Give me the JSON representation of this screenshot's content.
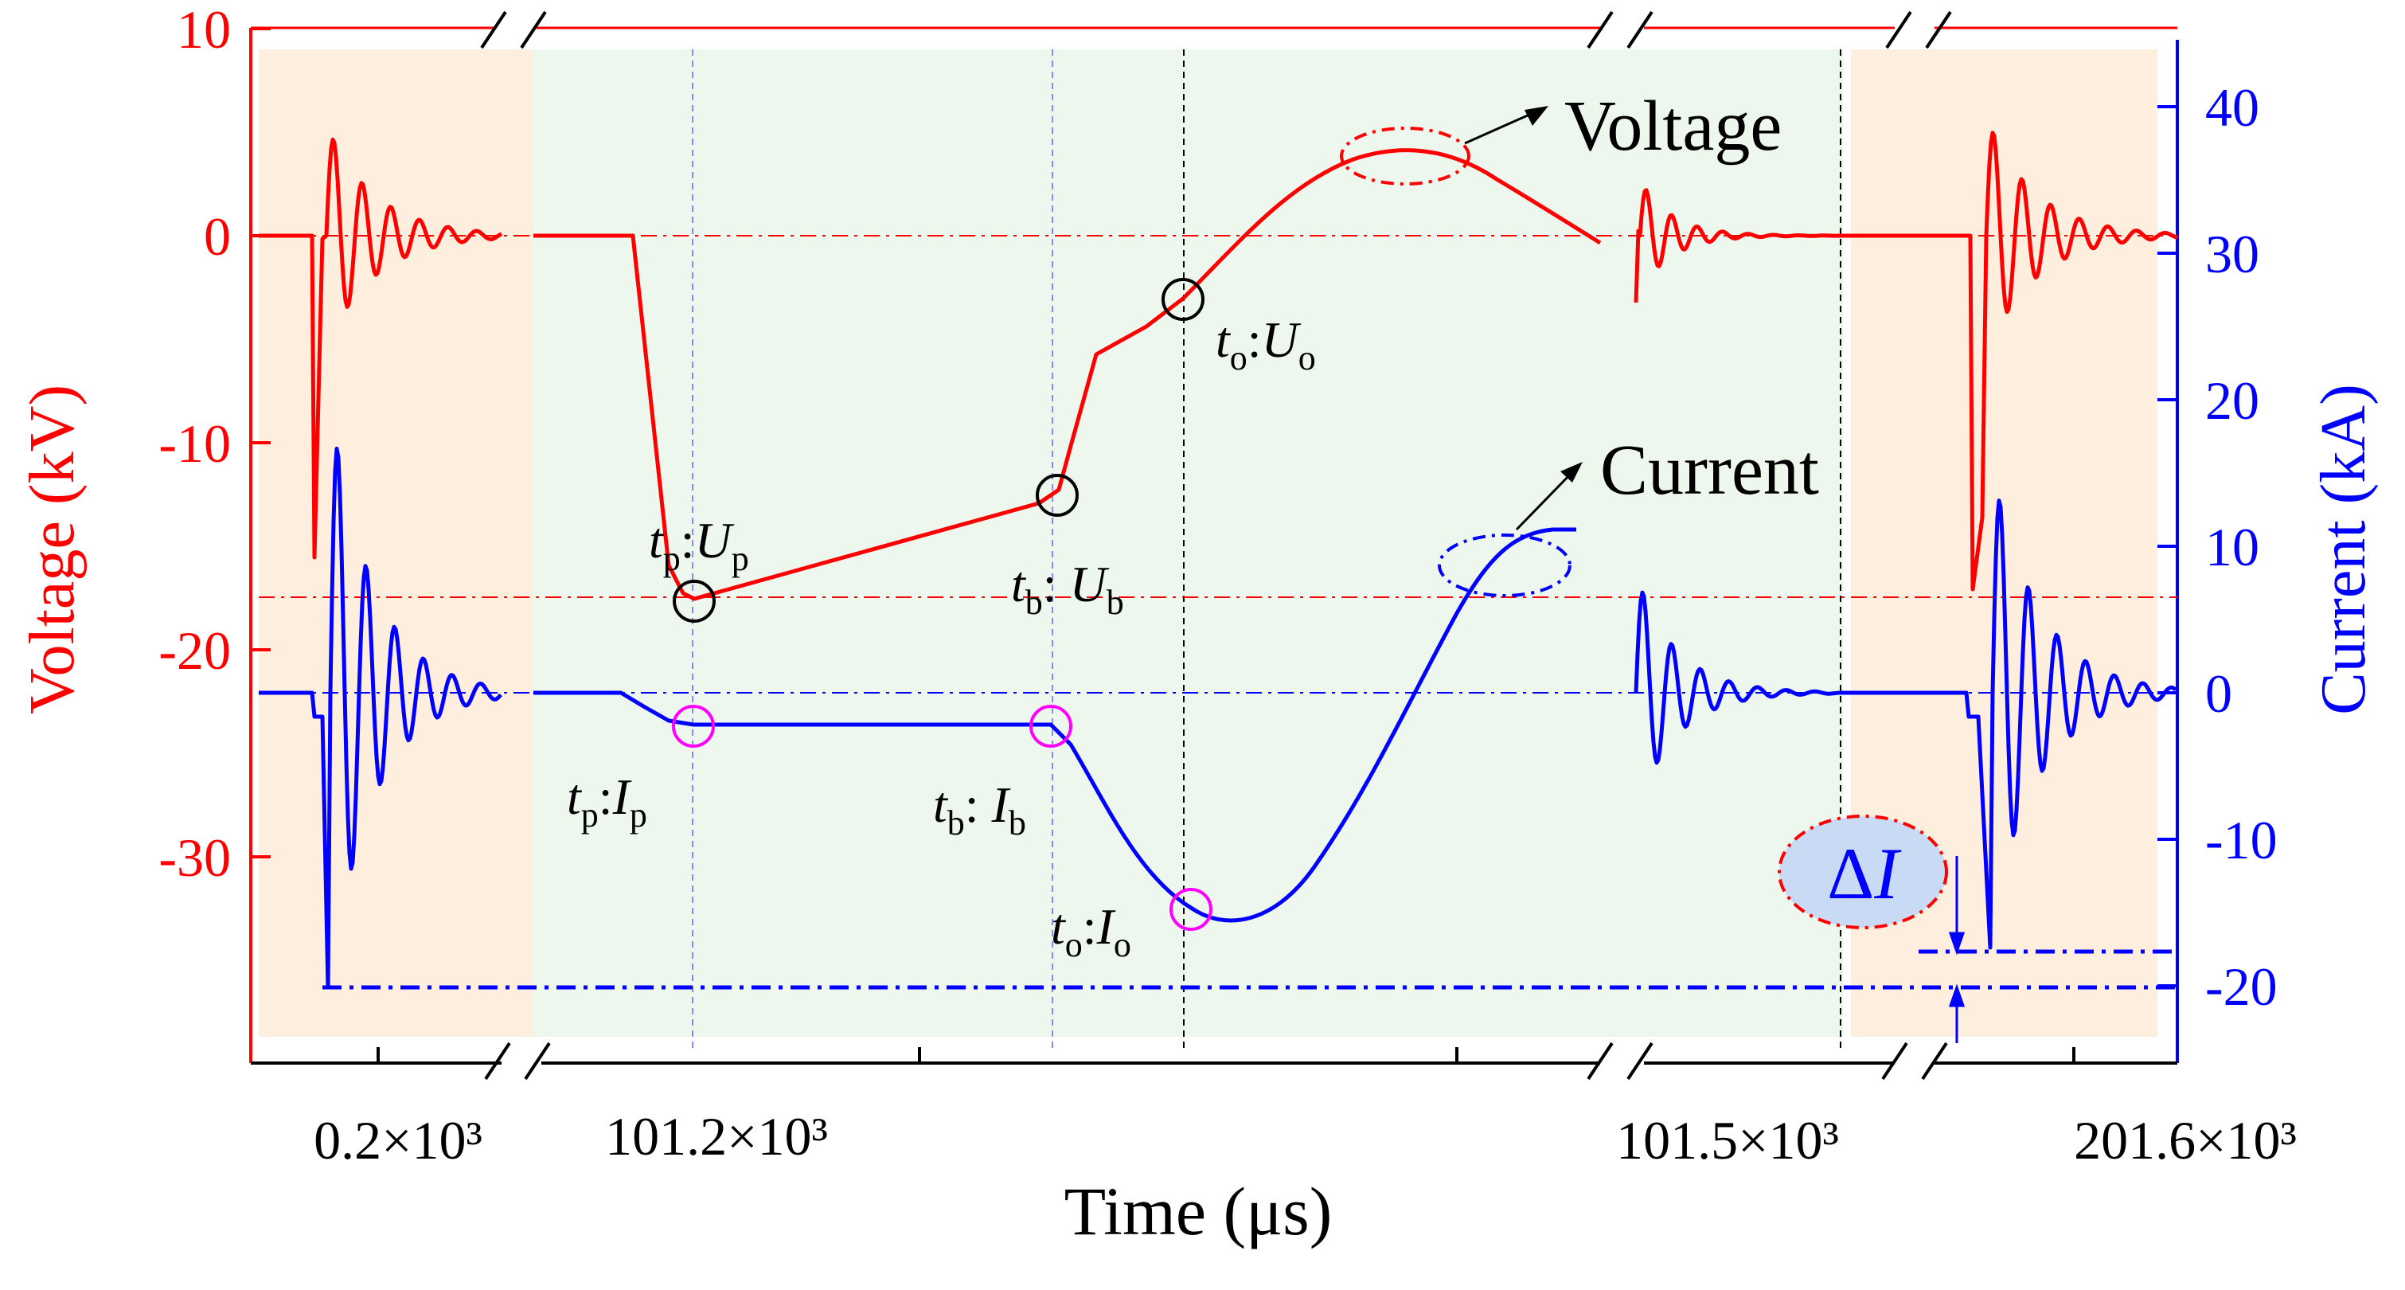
{
  "chart_data": {
    "type": "line",
    "x_axis": {
      "title": "Time (μs)",
      "tick_labels": [
        "0.2×10³",
        "101.2×10³",
        "101.5×10³",
        "201.6×10³"
      ],
      "broken": true
    },
    "y_left": {
      "title": "Voltage (kV)",
      "ticks": [
        "10",
        "0",
        "-10",
        "-20",
        "-30"
      ],
      "range": [
        -40,
        10
      ],
      "color": "#ff0000"
    },
    "y_right": {
      "title": "Current (kA)",
      "ticks": [
        "40",
        "30",
        "20",
        "10",
        "0",
        "-10",
        "-20"
      ],
      "range": [
        -22,
        44
      ],
      "color": "#0000ff"
    },
    "series_labels": {
      "voltage": "Voltage",
      "current": "Current"
    },
    "colors": {
      "voltage": "#ff0000",
      "current": "#0000ff",
      "marker_voltage": "#000000",
      "marker_current": "#ff00ff",
      "panel_outer": "#fdeedd",
      "panel_inner": "#eef7ee",
      "delta_fill": "#c9daf5"
    },
    "annotations": [
      {
        "id": "tp_up",
        "base": "t",
        "sub1": "p",
        "sep": ":",
        "var": "U",
        "sub2": "p"
      },
      {
        "id": "tb_ub",
        "base": "t",
        "sub1": "b",
        "sep": ": ",
        "var": "U",
        "sub2": "b"
      },
      {
        "id": "to_uo",
        "base": "t",
        "sub1": "o",
        "sep": ":",
        "var": "U",
        "sub2": "o"
      },
      {
        "id": "tp_ip",
        "base": "t",
        "sub1": "p",
        "sep": ":",
        "var": "I",
        "sub2": "p"
      },
      {
        "id": "tb_ib",
        "base": "t",
        "sub1": "b",
        "sep": ": ",
        "var": "I",
        "sub2": "b"
      },
      {
        "id": "to_io",
        "base": "t",
        "sub1": "o",
        "sep": ":",
        "var": "I",
        "sub2": "o"
      }
    ],
    "delta": {
      "symbol": "Δ",
      "var": "I"
    },
    "key_points": {
      "voltage_kV": {
        "Up": -17.5,
        "Ub": -12.7,
        "Uo": -3.0
      },
      "current_kA": {
        "Ip": -2.0,
        "Ib": -2.0,
        "Io": -14.5
      }
    }
  }
}
